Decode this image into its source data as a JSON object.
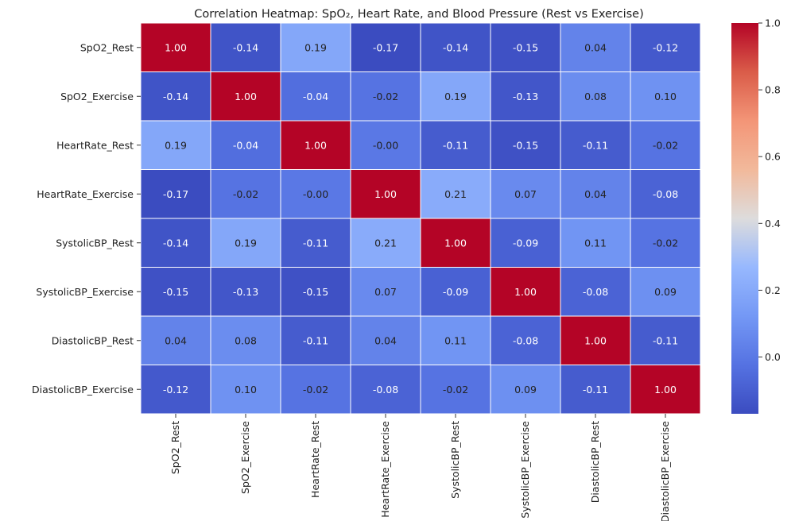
{
  "chart_data": {
    "type": "heatmap",
    "title": "Correlation Heatmap: SpO₂, Heart Rate, and Blood Pressure (Rest vs Exercise)",
    "rows": [
      "SpO2_Rest",
      "SpO2_Exercise",
      "HeartRate_Rest",
      "HeartRate_Exercise",
      "SystolicBP_Rest",
      "SystolicBP_Exercise",
      "DiastolicBP_Rest",
      "DiastolicBP_Exercise"
    ],
    "columns": [
      "SpO2_Rest",
      "SpO2_Exercise",
      "HeartRate_Rest",
      "HeartRate_Exercise",
      "SystolicBP_Rest",
      "SystolicBP_Exercise",
      "DiastolicBP_Rest",
      "DiastolicBP_Exercise"
    ],
    "values": [
      [
        1.0,
        -0.14,
        0.19,
        -0.17,
        -0.14,
        -0.15,
        0.04,
        -0.12
      ],
      [
        -0.14,
        1.0,
        -0.04,
        -0.02,
        0.19,
        -0.13,
        0.08,
        0.1
      ],
      [
        0.19,
        -0.04,
        1.0,
        -0.0,
        -0.11,
        -0.15,
        -0.11,
        -0.02
      ],
      [
        -0.17,
        -0.02,
        -0.0,
        1.0,
        0.21,
        0.07,
        0.04,
        -0.08
      ],
      [
        -0.14,
        0.19,
        -0.11,
        0.21,
        1.0,
        -0.09,
        0.11,
        -0.02
      ],
      [
        -0.15,
        -0.13,
        -0.15,
        0.07,
        -0.09,
        1.0,
        -0.08,
        0.09
      ],
      [
        0.04,
        0.08,
        -0.11,
        0.04,
        0.11,
        -0.08,
        1.0,
        -0.11
      ],
      [
        -0.12,
        0.1,
        -0.02,
        -0.08,
        -0.02,
        0.09,
        -0.11,
        1.0
      ]
    ],
    "value_labels": [
      [
        "1.00",
        "-0.14",
        "0.19",
        "-0.17",
        "-0.14",
        "-0.15",
        "0.04",
        "-0.12"
      ],
      [
        "-0.14",
        "1.00",
        "-0.04",
        "-0.02",
        "0.19",
        "-0.13",
        "0.08",
        "0.10"
      ],
      [
        "0.19",
        "-0.04",
        "1.00",
        "-0.00",
        "-0.11",
        "-0.15",
        "-0.11",
        "-0.02"
      ],
      [
        "-0.17",
        "-0.02",
        "-0.00",
        "1.00",
        "0.21",
        "0.07",
        "0.04",
        "-0.08"
      ],
      [
        "-0.14",
        "0.19",
        "-0.11",
        "0.21",
        "1.00",
        "-0.09",
        "0.11",
        "-0.02"
      ],
      [
        "-0.15",
        "-0.13",
        "-0.15",
        "0.07",
        "-0.09",
        "1.00",
        "-0.08",
        "0.09"
      ],
      [
        "0.04",
        "0.08",
        "-0.11",
        "0.04",
        "0.11",
        "-0.08",
        "1.00",
        "-0.11"
      ],
      [
        "-0.12",
        "0.10",
        "-0.02",
        "-0.08",
        "-0.02",
        "0.09",
        "-0.11",
        "1.00"
      ]
    ],
    "colorbar": {
      "colormap": "coolwarm",
      "range": [
        -0.17,
        1.0
      ],
      "ticks": [
        0.0,
        0.2,
        0.4,
        0.6,
        0.8,
        1.0
      ],
      "tick_labels": [
        "0.0",
        "0.2",
        "0.4",
        "0.6",
        "0.8",
        "1.0"
      ]
    },
    "annotated": true,
    "grid": true
  }
}
